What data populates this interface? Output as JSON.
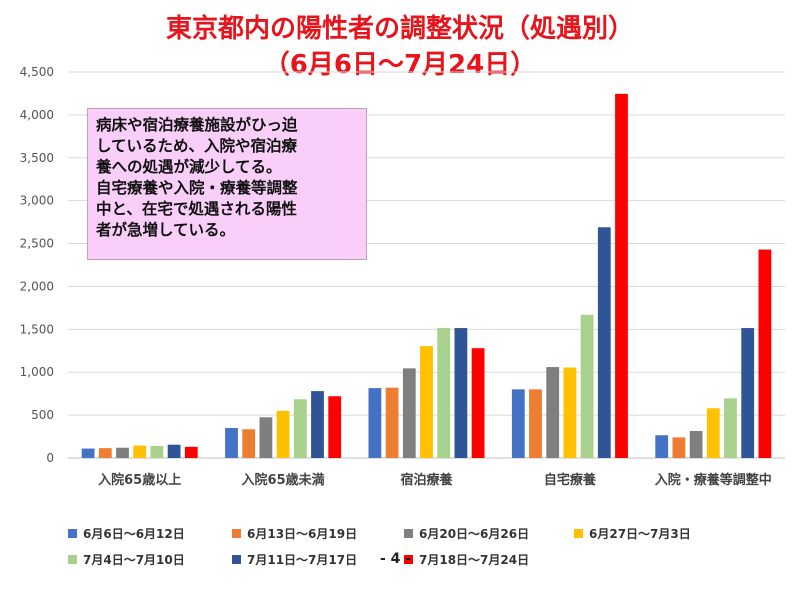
{
  "chart_data": {
    "type": "bar",
    "title": "東京都内の陽性者の調整状況（処遇別）",
    "subtitle": "（6月6日〜7月24日）",
    "xlabel": "",
    "ylabel": "",
    "ylim": [
      0,
      4500
    ],
    "yticks": [
      "0",
      "500",
      "1,000",
      "1,500",
      "2,000",
      "2,500",
      "3,000",
      "3,500",
      "4,000",
      "4,500"
    ],
    "ytick_values": [
      0,
      500,
      1000,
      1500,
      2000,
      2500,
      3000,
      3500,
      4000,
      4500
    ],
    "grid": true,
    "legend_position": "bottom",
    "categories": [
      "入院65歳以上",
      "入院65歳未満",
      "宿泊療養",
      "自宅療養",
      "入院・療養等調整中"
    ],
    "series": [
      {
        "name": "6月6日〜6月12日",
        "color": "#4472c4",
        "values": [
          110,
          350,
          815,
          800,
          265
        ]
      },
      {
        "name": "6月13日〜6月19日",
        "color": "#ed7d31",
        "values": [
          115,
          335,
          820,
          800,
          240
        ]
      },
      {
        "name": "6月20日〜6月26日",
        "color": "#7f7f7f",
        "values": [
          120,
          475,
          1045,
          1060,
          315
        ]
      },
      {
        "name": "6月27日〜7月3日",
        "color": "#ffc000",
        "values": [
          145,
          550,
          1305,
          1055,
          580
        ]
      },
      {
        "name": "7月4日〜7月10日",
        "color": "#a9d18e",
        "values": [
          140,
          685,
          1515,
          1670,
          695
        ]
      },
      {
        "name": "7月11日〜7月17日",
        "color": "#2f5597",
        "values": [
          155,
          780,
          1515,
          2690,
          1515
        ]
      },
      {
        "name": "7月18日〜7月24日",
        "color": "#ff0000",
        "values": [
          130,
          720,
          1280,
          4245,
          2430
        ]
      }
    ]
  },
  "note_lines": [
    "病床や宿泊療養施設がひっ迫",
    "しているため、入院や宿泊療",
    "養への処遇が減少してる。",
    "自宅療養や入院・療養等調整",
    "中と、在宅で処遇される陽性",
    "者が急増している。"
  ],
  "page_number": "- 4 -"
}
